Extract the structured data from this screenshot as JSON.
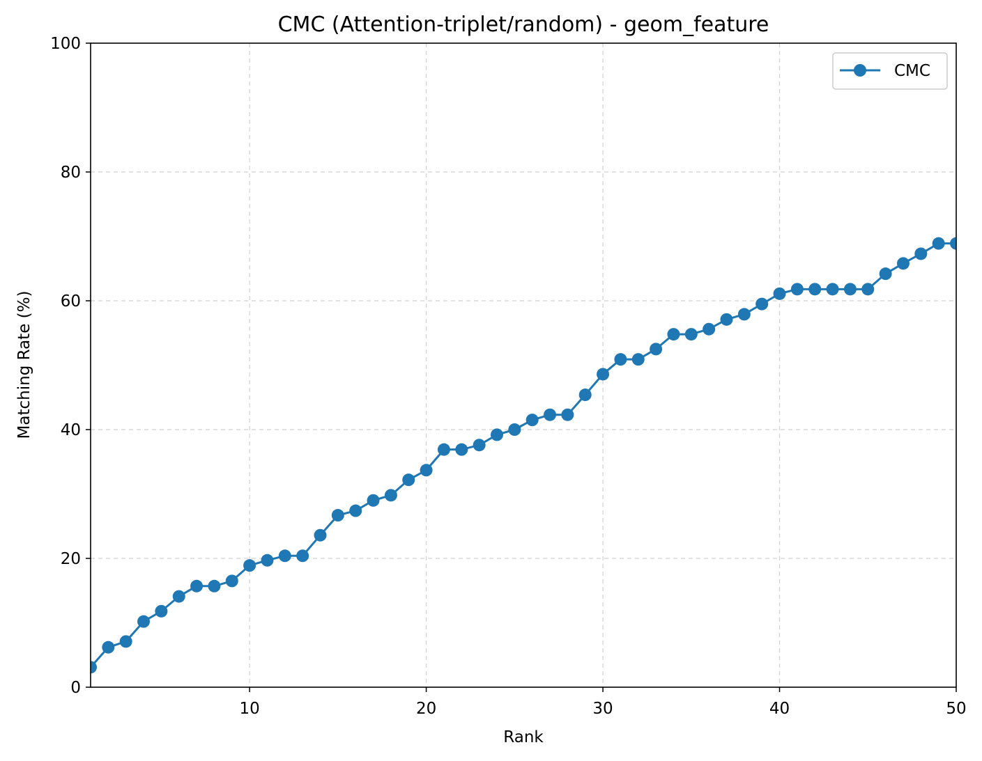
{
  "chart_data": {
    "type": "line",
    "title": "CMC (Attention-triplet/random) - geom_feature",
    "xlabel": "Rank",
    "ylabel": "Matching Rate (%)",
    "xlim": [
      1,
      50
    ],
    "ylim": [
      0,
      100
    ],
    "xticks": [
      10,
      20,
      30,
      40,
      50
    ],
    "yticks": [
      0,
      20,
      40,
      60,
      80,
      100
    ],
    "grid": true,
    "legend_position": "top-right",
    "series": [
      {
        "name": "CMC",
        "color": "#1f77b4",
        "marker": "circle",
        "x": [
          1,
          2,
          3,
          4,
          5,
          6,
          7,
          8,
          9,
          10,
          11,
          12,
          13,
          14,
          15,
          16,
          17,
          18,
          19,
          20,
          21,
          22,
          23,
          24,
          25,
          26,
          27,
          28,
          29,
          30,
          31,
          32,
          33,
          34,
          35,
          36,
          37,
          38,
          39,
          40,
          41,
          42,
          43,
          44,
          45,
          46,
          47,
          48,
          49,
          50
        ],
        "values": [
          3.1,
          6.2,
          7.1,
          10.2,
          11.8,
          14.1,
          15.7,
          15.7,
          16.5,
          18.9,
          19.7,
          20.4,
          20.4,
          23.6,
          26.7,
          27.4,
          29.0,
          29.8,
          32.2,
          33.7,
          36.9,
          36.9,
          37.6,
          39.2,
          40.0,
          41.5,
          42.3,
          42.3,
          45.4,
          48.6,
          50.9,
          50.9,
          52.5,
          54.8,
          54.8,
          55.6,
          57.1,
          57.9,
          59.5,
          61.1,
          61.8,
          61.8,
          61.8,
          61.8,
          61.8,
          64.2,
          65.8,
          67.3,
          68.9,
          68.9
        ]
      }
    ]
  }
}
